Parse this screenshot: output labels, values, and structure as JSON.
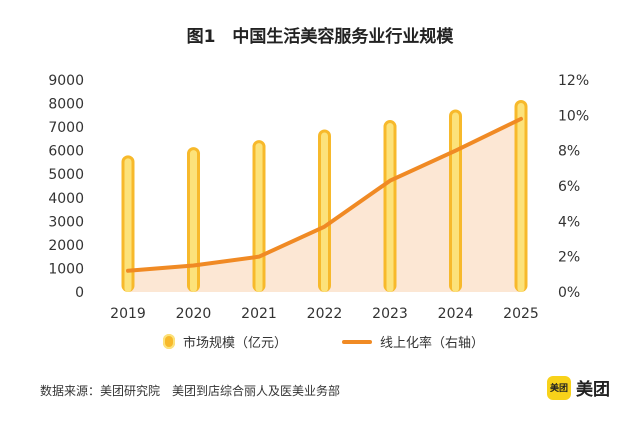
{
  "chart_data": {
    "type": "bar+line",
    "title": "图1　中国生活美容服务业行业规模",
    "categories": [
      "2019",
      "2020",
      "2021",
      "2022",
      "2023",
      "2024",
      "2025"
    ],
    "series": [
      {
        "name": "市场规模（亿元）",
        "type": "bar",
        "axis": "left",
        "values": [
          5800,
          6150,
          6450,
          6900,
          7300,
          7750,
          8150
        ]
      },
      {
        "name": "线上化率（右轴）",
        "type": "area-line",
        "axis": "right",
        "values": [
          1.2,
          1.5,
          2.0,
          3.7,
          6.3,
          8.0,
          9.8
        ]
      }
    ],
    "y_left": {
      "ticks": [
        "0",
        "1000",
        "2000",
        "3000",
        "4000",
        "5000",
        "6000",
        "7000",
        "8000",
        "9000"
      ],
      "range": [
        0,
        9000
      ]
    },
    "y_right": {
      "ticks": [
        "0%",
        "2%",
        "4%",
        "6%",
        "8%",
        "10%",
        "12%"
      ],
      "range": [
        0,
        12
      ]
    },
    "grid": false,
    "legend_placement": "bottom"
  },
  "colors": {
    "bar": "#f7b92b",
    "bar_highlight": "#fce27a",
    "line": "#f08a24",
    "area": "#fbe3cd"
  },
  "footer": {
    "source": "数据来源：美团研究院　美团到店综合丽人及医美业务部",
    "brand_logo_text": "美团",
    "brand_name": "美团"
  }
}
